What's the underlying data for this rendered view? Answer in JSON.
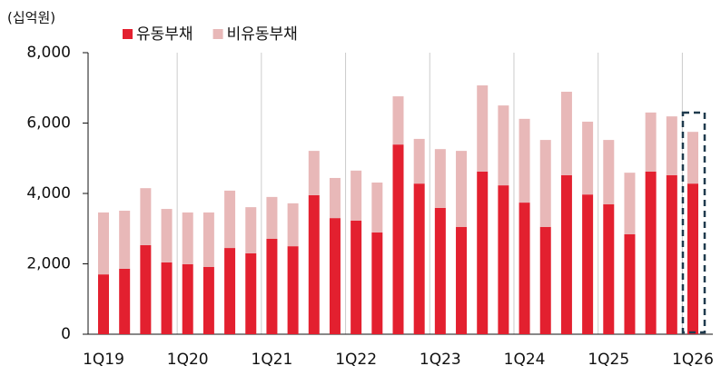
{
  "chart_data": {
    "type": "stacked_bar",
    "y_label": "(십억원)",
    "categories": [
      "1Q19",
      null,
      null,
      null,
      "1Q20",
      null,
      null,
      null,
      "1Q21",
      null,
      null,
      null,
      "1Q22",
      null,
      null,
      null,
      "1Q23",
      null,
      null,
      null,
      "1Q24",
      null,
      null,
      null,
      "1Q25",
      null,
      null,
      null,
      "1Q26"
    ],
    "series": [
      {
        "name": "유동부채",
        "color": "#e3202f",
        "values": [
          1700,
          1860,
          2530,
          2040,
          1990,
          1910,
          2450,
          2300,
          2710,
          2500,
          3950,
          3300,
          3230,
          2890,
          5390,
          4280,
          3590,
          3050,
          4620,
          4230,
          3740,
          3050,
          4520,
          3970,
          3690,
          2840,
          4620,
          4520,
          4280
        ]
      },
      {
        "name": "비유동부채",
        "color": "#e8b8b8",
        "values": [
          1760,
          1650,
          1620,
          1520,
          1470,
          1550,
          1630,
          1310,
          1190,
          1220,
          1260,
          1140,
          1420,
          1420,
          1370,
          1270,
          1670,
          2160,
          2450,
          2270,
          2380,
          2470,
          2370,
          2070,
          1830,
          1750,
          1680,
          1670,
          1470
        ]
      }
    ],
    "ylim": [
      0,
      8000
    ],
    "yticks": [
      0,
      {
        "value": 2000,
        "label": "2,000"
      },
      {
        "value": 4000,
        "label": "4,000"
      },
      {
        "value": 6000,
        "label": "6,000"
      },
      {
        "value": 8000,
        "label": "8,000"
      }
    ],
    "legend": "top"
  }
}
